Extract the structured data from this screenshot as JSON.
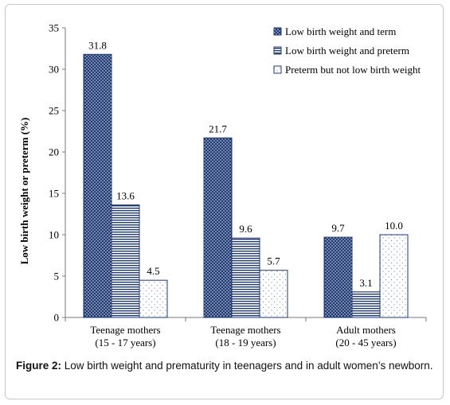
{
  "chart_data": {
    "type": "bar",
    "title": "",
    "xlabel": "",
    "ylabel": "Low birth weight or  preterm (%)",
    "ylim": [
      0,
      35
    ],
    "yticks": [
      0,
      5,
      10,
      15,
      20,
      25,
      30,
      35
    ],
    "grid": false,
    "legend_position": "top-right",
    "categories": [
      [
        "Teenage mothers",
        "(15 - 17 years)"
      ],
      [
        "Teenage mothers",
        "(18 - 19 years)"
      ],
      [
        "Adult mothers",
        "(20 - 45 years)"
      ]
    ],
    "series": [
      {
        "name": "Low birth weight and term",
        "values": [
          31.8,
          21.7,
          9.7
        ],
        "labels": [
          "31.8",
          "21.7",
          "9.7"
        ],
        "color": "#1f3a73",
        "pattern": "dots"
      },
      {
        "name": "Low birth weight and preterm",
        "values": [
          13.6,
          9.6,
          3.1
        ],
        "labels": [
          "13.6",
          "9.6",
          "3.1"
        ],
        "color": "#1f3a73",
        "pattern": "hlines"
      },
      {
        "name": "Preterm but not low birth weight",
        "values": [
          4.5,
          5.7,
          10.0
        ],
        "labels": [
          "4.5",
          "5.7",
          "10.0"
        ],
        "color": "#1f3a73",
        "pattern": "sparse-dots"
      }
    ]
  },
  "caption": {
    "label": "Figure 2:",
    "text": " Low birth weight and prematurity in teenagers and in adult women’s newborn."
  }
}
